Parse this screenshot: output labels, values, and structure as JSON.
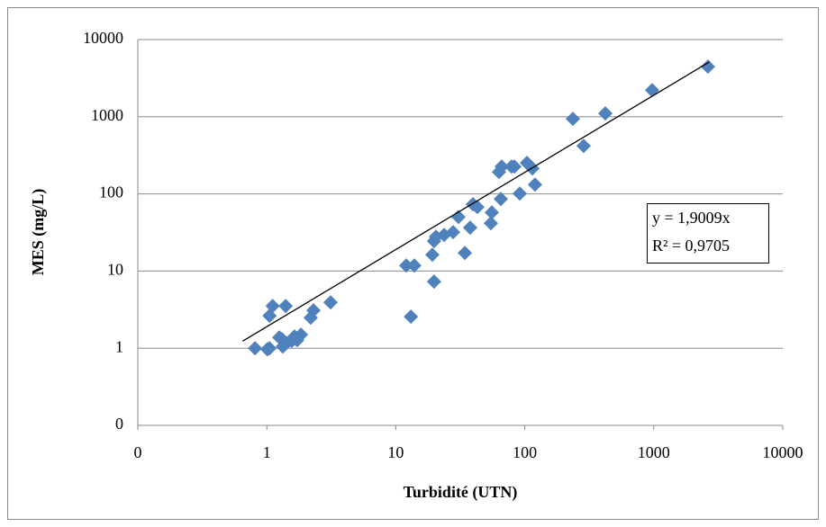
{
  "chart_data": {
    "type": "scatter",
    "x_label": "Turbidité (UTN)",
    "y_label": "MES (mg/L)",
    "log_x": true,
    "log_y": true,
    "grid": true,
    "color": "#4f81bd",
    "xlim": [
      0.1,
      10000
    ],
    "ylim": [
      0.1,
      10000
    ],
    "xticks": [
      {
        "value": 0.1,
        "label": "0"
      },
      1,
      10,
      100,
      1000,
      10000
    ],
    "yticks": [
      {
        "value": 0.1,
        "label": "0"
      },
      1,
      10,
      100,
      1000,
      10000
    ],
    "x": [
      0.81,
      1.01,
      1.05,
      1.11,
      1.05,
      1.25,
      1.31,
      1.33,
      1.4,
      1.42,
      1.56,
      1.64,
      1.72,
      1.84,
      2.19,
      2.3,
      3.12,
      12.05,
      13.9,
      13.1,
      19.8,
      19.2,
      19.8,
      20.5,
      23.7,
      27.8,
      30.6,
      34.3,
      37.7,
      39.6,
      42.9,
      54.6,
      55.5,
      65.2,
      63.1,
      66.2,
      79,
      83,
      104,
      91.4,
      114.5,
      120,
      236,
      286,
      421,
      971,
      2630
    ],
    "values": [
      1,
      0.97,
      2.63,
      3.53,
      1,
      1.38,
      1.31,
      1.05,
      3.53,
      1.17,
      1.24,
      1.42,
      1.27,
      1.5,
      2.49,
      3.09,
      3.93,
      11.8,
      11.8,
      2.56,
      7.3,
      16.3,
      24.4,
      27.8,
      29.4,
      31.9,
      50.3,
      17.2,
      36.5,
      73.3,
      67.6,
      41.7,
      57.5,
      86,
      192,
      226,
      226,
      226,
      252,
      101,
      214,
      132,
      938,
      419,
      1102,
      2213,
      4450
    ],
    "trendline": {
      "slope": 1.9009,
      "xlim": [
        0.65,
        2700
      ],
      "label": "y = 1,9009x",
      "r2_label": "R² = 0,9705"
    }
  }
}
